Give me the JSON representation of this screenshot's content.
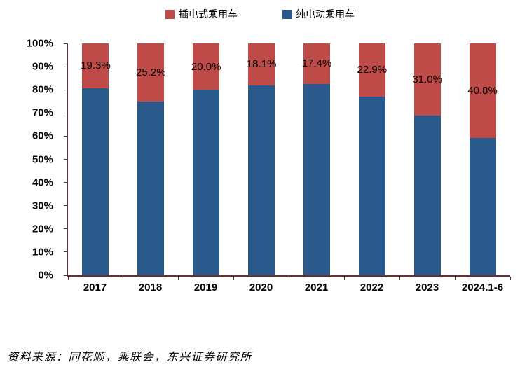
{
  "legend": [
    {
      "label": "插电式乘用车",
      "color": "#BE4B48"
    },
    {
      "label": "纯电动乘用车",
      "color": "#2A5A8C"
    }
  ],
  "chart_data": {
    "type": "bar",
    "stacked": true,
    "percent": true,
    "title": "",
    "xlabel": "",
    "ylabel": "",
    "categories": [
      "2017",
      "2018",
      "2019",
      "2020",
      "2021",
      "2022",
      "2023",
      "2024.1-6"
    ],
    "series": [
      {
        "name": "纯电动乘用车",
        "color": "#2A5A8C",
        "values": [
          80.7,
          74.8,
          80.0,
          81.9,
          82.6,
          77.1,
          69.0,
          59.2
        ]
      },
      {
        "name": "插电式乘用车",
        "color": "#BE4B48",
        "values": [
          19.3,
          25.2,
          20.0,
          18.1,
          17.4,
          22.9,
          31.0,
          40.8
        ]
      }
    ],
    "data_labels": [
      "19.3%",
      "25.2%",
      "20.0%",
      "18.1%",
      "17.4%",
      "22.9%",
      "31.0%",
      "40.8%"
    ],
    "y_ticks": [
      "100%",
      "90%",
      "80%",
      "70%",
      "60%",
      "50%",
      "40%",
      "30%",
      "20%",
      "10%",
      "0%"
    ],
    "ylim": [
      0,
      100
    ],
    "grid": false,
    "legend_position": "top"
  },
  "source_note": "资料来源：同花顺，乘联会，东兴证券研究所",
  "colors": {
    "red": "#BE4B48",
    "blue": "#2A5A8C",
    "axis": "#6e2c2a",
    "text": "#000000"
  }
}
